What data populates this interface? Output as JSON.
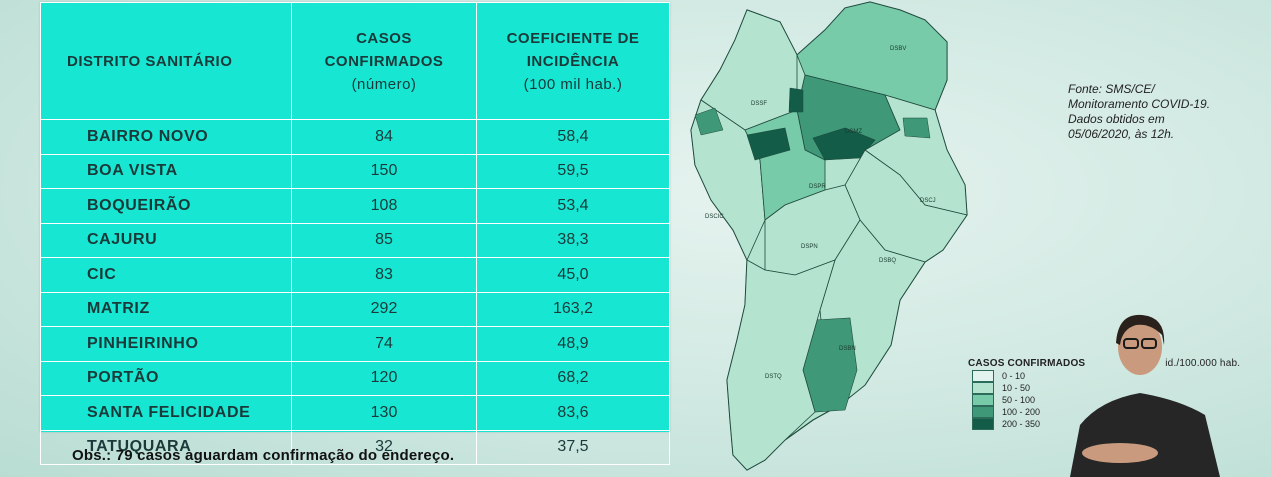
{
  "table": {
    "headers": {
      "district": "DISTRITO SANITÁRIO",
      "cases_line1": "CASOS",
      "cases_line2": "CONFIRMADOS",
      "cases_line3": "(número)",
      "coef_line1": "COEFICIENTE DE",
      "coef_line2": "INCIDÊNCIA",
      "coef_line3": "(100 mil hab.)"
    },
    "rows": [
      {
        "name": "BAIRRO NOVO",
        "cases": "84",
        "coef": "58,4"
      },
      {
        "name": "BOA VISTA",
        "cases": "150",
        "coef": "59,5"
      },
      {
        "name": "BOQUEIRÃO",
        "cases": "108",
        "coef": "53,4"
      },
      {
        "name": "CAJURU",
        "cases": "85",
        "coef": "38,3"
      },
      {
        "name": "CIC",
        "cases": "83",
        "coef": "45,0"
      },
      {
        "name": "MATRIZ",
        "cases": "292",
        "coef": "163,2"
      },
      {
        "name": "PINHEIRINHO",
        "cases": "74",
        "coef": "48,9"
      },
      {
        "name": "PORTÃO",
        "cases": "120",
        "coef": "68,2"
      },
      {
        "name": "SANTA FELICIDADE",
        "cases": "130",
        "coef": "83,6"
      },
      {
        "name": "TATUQUARA",
        "cases": "32",
        "coef": "37,5"
      }
    ]
  },
  "obs": "Obs.: 79 casos aguardam confirmação do endereço.",
  "source": {
    "line1": "Fonte: SMS/CE/",
    "line2": "Monitoramento COVID-19.",
    "line3": "Dados obtidos em",
    "line4": "05/06/2020, às 12h."
  },
  "legend": {
    "title": "CASOS CONFIRMADOS",
    "title_rest": "id./100.000 hab.",
    "items": [
      {
        "label": "0 - 10",
        "color": "#e3f4ee"
      },
      {
        "label": "10 - 50",
        "color": "#b4e3cf"
      },
      {
        "label": "50 - 100",
        "color": "#77cba9"
      },
      {
        "label": "100 - 200",
        "color": "#3f9878"
      },
      {
        "label": "200 - 350",
        "color": "#135c47"
      }
    ]
  },
  "map": {
    "labels": {
      "dsbv": "DSBV",
      "dssf": "DSSF",
      "dsmz": "DSMZ",
      "dscj": "DSCJ",
      "dscic": "DSCIC",
      "dspr": "DSPR",
      "dspn": "DSPN",
      "dsbq": "DSBQ",
      "dsbn": "DSBN",
      "dstq": "DSTQ"
    }
  }
}
